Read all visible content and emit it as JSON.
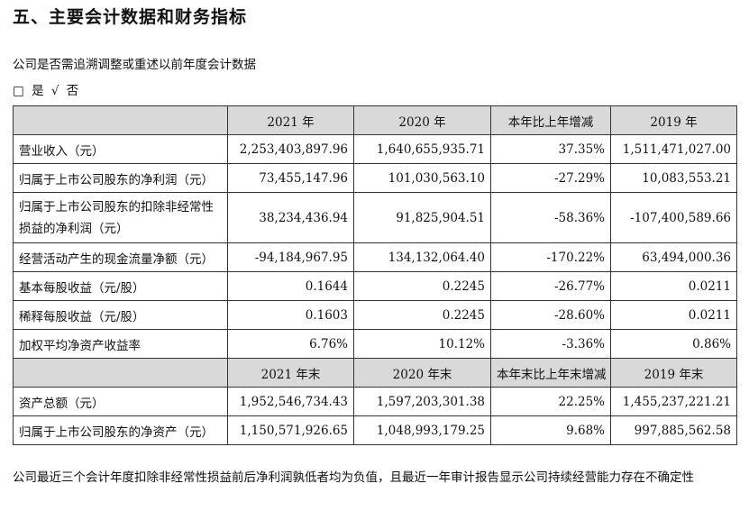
{
  "heading": "五、主要会计数据和财务指标",
  "question": "公司是否需追溯调整或重述以前年度会计数据",
  "answer": {
    "box": "□",
    "yes": "是",
    "check": "√",
    "no": "否"
  },
  "table": {
    "header1": [
      "2021 年",
      "2020 年",
      "本年比上年增减",
      "2019 年"
    ],
    "rows1": [
      {
        "label": "营业收入（元）",
        "values": [
          "2,253,403,897.96",
          "1,640,655,935.71",
          "37.35%",
          "1,511,471,027.00"
        ]
      },
      {
        "label": "归属于上市公司股东的净利润（元）",
        "values": [
          "73,455,147.96",
          "101,030,563.10",
          "-27.29%",
          "10,083,553.21"
        ]
      },
      {
        "label": "归属于上市公司股东的扣除非经常性损益的净利润（元）",
        "values": [
          "38,234,436.94",
          "91,825,904.51",
          "-58.36%",
          "-107,400,589.66"
        ]
      },
      {
        "label": "经营活动产生的现金流量净额（元）",
        "values": [
          "-94,184,967.95",
          "134,132,064.40",
          "-170.22%",
          "63,494,000.36"
        ]
      },
      {
        "label": "基本每股收益（元/股）",
        "values": [
          "0.1644",
          "0.2245",
          "-26.77%",
          "0.0211"
        ]
      },
      {
        "label": "稀释每股收益（元/股）",
        "values": [
          "0.1603",
          "0.2245",
          "-28.60%",
          "0.0211"
        ]
      },
      {
        "label": "加权平均净资产收益率",
        "values": [
          "6.76%",
          "10.12%",
          "-3.36%",
          "0.86%"
        ]
      }
    ],
    "header2": [
      "2021 年末",
      "2020 年末",
      "本年末比上年末增减",
      "2019 年末"
    ],
    "rows2": [
      {
        "label": "资产总额（元）",
        "values": [
          "1,952,546,734.43",
          "1,597,203,301.38",
          "22.25%",
          "1,455,237,221.21"
        ]
      },
      {
        "label": "归属于上市公司股东的净资产（元）",
        "values": [
          "1,150,571,926.65",
          "1,048,993,179.25",
          "9.68%",
          "997,885,562.58"
        ]
      }
    ]
  },
  "footnote": "公司最近三个会计年度扣除非经常性损益前后净利润孰低者均为负值，且最近一年审计报告显示公司持续经营能力存在不确定性"
}
